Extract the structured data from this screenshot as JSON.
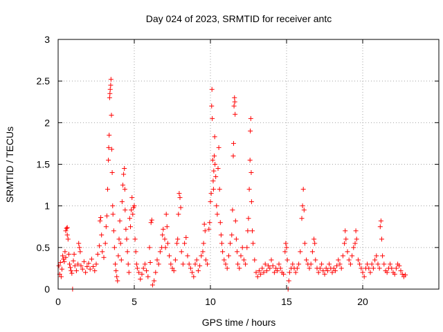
{
  "chart_data": {
    "type": "scatter",
    "title": "Day 024 of 2023, SRMTID for receiver antc",
    "xlabel": "GPS time / hours",
    "ylabel": "SRMTID / TECUs",
    "xlim": [
      0,
      25
    ],
    "ylim": [
      0,
      3
    ],
    "x_ticks": [
      0,
      5,
      10,
      15,
      20
    ],
    "x_tick_labels": [
      "0",
      "5",
      "10",
      "15",
      "20"
    ],
    "y_ticks": [
      0,
      0.5,
      1,
      1.5,
      2,
      2.5,
      3
    ],
    "y_tick_labels": [
      "0",
      "0.5",
      "1",
      "1.5",
      "2",
      "2.5",
      "3"
    ],
    "grid": true,
    "marker": "+",
    "color": "#ff0000",
    "series": [
      {
        "name": "SRMTID",
        "points": [
          [
            0.05,
            0.28
          ],
          [
            0.1,
            0.18
          ],
          [
            0.15,
            0.32
          ],
          [
            0.2,
            0.15
          ],
          [
            0.25,
            0.24
          ],
          [
            0.3,
            0.4
          ],
          [
            0.35,
            0.36
          ],
          [
            0.4,
            0.33
          ],
          [
            0.45,
            0.45
          ],
          [
            0.5,
            0.38
          ],
          [
            0.5,
            0.7
          ],
          [
            0.55,
            0.73
          ],
          [
            0.6,
            0.65
          ],
          [
            0.6,
            0.74
          ],
          [
            0.65,
            0.6
          ],
          [
            0.7,
            0.42
          ],
          [
            0.75,
            0.3
          ],
          [
            0.8,
            0.26
          ],
          [
            0.85,
            0.22
          ],
          [
            0.9,
            0.19
          ],
          [
            0.95,
            0.0
          ],
          [
            1.0,
            0.34
          ],
          [
            1.05,
            0.42
          ],
          [
            1.1,
            0.28
          ],
          [
            1.2,
            0.22
          ],
          [
            1.3,
            0.3
          ],
          [
            1.35,
            0.55
          ],
          [
            1.4,
            0.5
          ],
          [
            1.45,
            0.45
          ],
          [
            1.5,
            0.28
          ],
          [
            1.6,
            0.24
          ],
          [
            1.7,
            0.33
          ],
          [
            1.8,
            0.2
          ],
          [
            1.9,
            0.27
          ],
          [
            2.0,
            0.31
          ],
          [
            2.1,
            0.24
          ],
          [
            2.2,
            0.36
          ],
          [
            2.3,
            0.27
          ],
          [
            2.4,
            0.22
          ],
          [
            2.5,
            0.3
          ],
          [
            2.6,
            0.42
          ],
          [
            2.7,
            0.52
          ],
          [
            2.75,
            0.82
          ],
          [
            2.8,
            0.86
          ],
          [
            2.85,
            0.65
          ],
          [
            2.9,
            0.45
          ],
          [
            3.0,
            0.38
          ],
          [
            3.1,
            0.55
          ],
          [
            3.15,
            0.75
          ],
          [
            3.2,
            0.88
          ],
          [
            3.25,
            1.2
          ],
          [
            3.3,
            1.55
          ],
          [
            3.32,
            1.7
          ],
          [
            3.35,
            1.85
          ],
          [
            3.38,
            2.3
          ],
          [
            3.4,
            2.35
          ],
          [
            3.42,
            2.4
          ],
          [
            3.45,
            2.45
          ],
          [
            3.47,
            2.52
          ],
          [
            3.5,
            2.09
          ],
          [
            3.52,
            1.68
          ],
          [
            3.55,
            1.4
          ],
          [
            3.58,
            1.0
          ],
          [
            3.6,
            0.9
          ],
          [
            3.65,
            0.7
          ],
          [
            3.7,
            0.5
          ],
          [
            3.75,
            0.3
          ],
          [
            3.8,
            0.22
          ],
          [
            3.85,
            0.15
          ],
          [
            3.9,
            0.1
          ],
          [
            3.95,
            0.4
          ],
          [
            4.0,
            0.6
          ],
          [
            4.05,
            0.82
          ],
          [
            4.1,
            0.55
          ],
          [
            4.15,
            0.35
          ],
          [
            4.2,
            1.05
          ],
          [
            4.25,
            1.25
          ],
          [
            4.3,
            1.38
          ],
          [
            4.35,
            1.45
          ],
          [
            4.38,
            1.2
          ],
          [
            4.4,
            0.95
          ],
          [
            4.45,
            0.72
          ],
          [
            4.5,
            0.6
          ],
          [
            4.55,
            0.45
          ],
          [
            4.6,
            0.3
          ],
          [
            4.65,
            0.2
          ],
          [
            4.7,
            0.85
          ],
          [
            4.75,
            0.75
          ],
          [
            4.8,
            0.95
          ],
          [
            4.85,
            1.1
          ],
          [
            4.9,
            0.9
          ],
          [
            4.95,
            0.98
          ],
          [
            5.0,
            1.0
          ],
          [
            5.05,
            0.6
          ],
          [
            5.1,
            0.45
          ],
          [
            5.15,
            0.3
          ],
          [
            5.2,
            0.25
          ],
          [
            5.3,
            0.2
          ],
          [
            5.4,
            0.12
          ],
          [
            5.5,
            0.18
          ],
          [
            5.6,
            0.25
          ],
          [
            5.7,
            0.3
          ],
          [
            5.8,
            0.22
          ],
          [
            5.9,
            0.15
          ],
          [
            6.0,
            0.5
          ],
          [
            6.05,
            0.32
          ],
          [
            6.1,
            0.8
          ],
          [
            6.15,
            0.83
          ],
          [
            6.2,
            0.05
          ],
          [
            6.3,
            0.1
          ],
          [
            6.4,
            0.2
          ],
          [
            6.5,
            0.35
          ],
          [
            6.6,
            0.3
          ],
          [
            6.7,
            0.45
          ],
          [
            6.8,
            0.5
          ],
          [
            6.85,
            0.65
          ],
          [
            6.9,
            0.72
          ],
          [
            7.0,
            0.6
          ],
          [
            7.05,
            0.5
          ],
          [
            7.1,
            0.9
          ],
          [
            7.15,
            0.75
          ],
          [
            7.2,
            0.55
          ],
          [
            7.3,
            0.4
          ],
          [
            7.4,
            0.3
          ],
          [
            7.5,
            0.25
          ],
          [
            7.6,
            0.22
          ],
          [
            7.7,
            0.35
          ],
          [
            7.8,
            0.55
          ],
          [
            7.85,
            0.6
          ],
          [
            7.9,
            0.9
          ],
          [
            7.95,
            1.15
          ],
          [
            8.0,
            1.1
          ],
          [
            8.05,
            0.98
          ],
          [
            8.1,
            0.45
          ],
          [
            8.2,
            0.3
          ],
          [
            8.3,
            0.55
          ],
          [
            8.4,
            0.62
          ],
          [
            8.5,
            0.4
          ],
          [
            8.6,
            0.3
          ],
          [
            8.7,
            0.25
          ],
          [
            8.8,
            0.2
          ],
          [
            8.9,
            0.15
          ],
          [
            9.0,
            0.3
          ],
          [
            9.1,
            0.35
          ],
          [
            9.2,
            0.22
          ],
          [
            9.3,
            0.28
          ],
          [
            9.4,
            0.4
          ],
          [
            9.5,
            0.45
          ],
          [
            9.55,
            0.55
          ],
          [
            9.6,
            0.78
          ],
          [
            9.65,
            0.7
          ],
          [
            9.7,
            0.35
          ],
          [
            9.8,
            0.3
          ],
          [
            9.9,
            0.72
          ],
          [
            9.95,
            0.8
          ],
          [
            10.0,
            1.05
          ],
          [
            10.05,
            1.15
          ],
          [
            10.08,
            2.2
          ],
          [
            10.1,
            2.4
          ],
          [
            10.12,
            2.05
          ],
          [
            10.15,
            1.55
          ],
          [
            10.18,
            1.3
          ],
          [
            10.2,
            1.2
          ],
          [
            10.22,
            1.42
          ],
          [
            10.25,
            1.6
          ],
          [
            10.28,
            1.83
          ],
          [
            10.3,
            1.5
          ],
          [
            10.35,
            1.35
          ],
          [
            10.4,
            1.0
          ],
          [
            10.45,
            0.9
          ],
          [
            10.5,
            1.45
          ],
          [
            10.55,
            1.7
          ],
          [
            10.6,
            1.2
          ],
          [
            10.65,
            0.8
          ],
          [
            10.7,
            0.65
          ],
          [
            10.75,
            0.55
          ],
          [
            10.8,
            0.45
          ],
          [
            10.9,
            0.35
          ],
          [
            11.0,
            0.3
          ],
          [
            11.1,
            0.25
          ],
          [
            11.2,
            0.4
          ],
          [
            11.3,
            0.55
          ],
          [
            11.4,
            0.65
          ],
          [
            11.45,
            0.95
          ],
          [
            11.5,
            1.6
          ],
          [
            11.52,
            1.75
          ],
          [
            11.55,
            2.2
          ],
          [
            11.58,
            2.3
          ],
          [
            11.6,
            2.25
          ],
          [
            11.62,
            2.1
          ],
          [
            11.65,
            0.82
          ],
          [
            11.7,
            0.6
          ],
          [
            11.75,
            0.45
          ],
          [
            11.8,
            0.3
          ],
          [
            11.9,
            0.25
          ],
          [
            12.0,
            0.4
          ],
          [
            12.1,
            0.5
          ],
          [
            12.2,
            0.35
          ],
          [
            12.3,
            0.3
          ],
          [
            12.4,
            0.5
          ],
          [
            12.45,
            0.7
          ],
          [
            12.5,
            0.85
          ],
          [
            12.55,
            1.2
          ],
          [
            12.6,
            1.55
          ],
          [
            12.62,
            1.9
          ],
          [
            12.65,
            2.05
          ],
          [
            12.68,
            1.4
          ],
          [
            12.7,
            1.05
          ],
          [
            12.75,
            0.7
          ],
          [
            12.8,
            0.55
          ],
          [
            12.9,
            0.35
          ],
          [
            13.0,
            0.2
          ],
          [
            13.1,
            0.15
          ],
          [
            13.2,
            0.22
          ],
          [
            13.3,
            0.18
          ],
          [
            13.4,
            0.25
          ],
          [
            13.5,
            0.2
          ],
          [
            13.6,
            0.3
          ],
          [
            13.7,
            0.22
          ],
          [
            13.8,
            0.28
          ],
          [
            13.9,
            0.25
          ],
          [
            14.0,
            0.35
          ],
          [
            14.1,
            0.28
          ],
          [
            14.2,
            0.2
          ],
          [
            14.3,
            0.25
          ],
          [
            14.4,
            0.22
          ],
          [
            14.5,
            0.3
          ],
          [
            14.6,
            0.25
          ],
          [
            14.7,
            0.2
          ],
          [
            14.8,
            0.18
          ],
          [
            14.9,
            0.45
          ],
          [
            14.95,
            0.55
          ],
          [
            15.0,
            0.5
          ],
          [
            15.05,
            0.35
          ],
          [
            15.1,
            0.0
          ],
          [
            15.15,
            0.1
          ],
          [
            15.2,
            0.2
          ],
          [
            15.3,
            0.25
          ],
          [
            15.4,
            0.3
          ],
          [
            15.5,
            0.25
          ],
          [
            15.6,
            0.2
          ],
          [
            15.7,
            0.25
          ],
          [
            15.8,
            0.3
          ],
          [
            15.9,
            0.45
          ],
          [
            16.0,
            0.85
          ],
          [
            16.05,
            1.0
          ],
          [
            16.1,
            1.2
          ],
          [
            16.15,
            0.95
          ],
          [
            16.2,
            0.55
          ],
          [
            16.3,
            0.35
          ],
          [
            16.4,
            0.3
          ],
          [
            16.5,
            0.25
          ],
          [
            16.6,
            0.3
          ],
          [
            16.7,
            0.45
          ],
          [
            16.8,
            0.6
          ],
          [
            16.85,
            0.55
          ],
          [
            16.9,
            0.35
          ],
          [
            17.0,
            0.25
          ],
          [
            17.1,
            0.2
          ],
          [
            17.2,
            0.25
          ],
          [
            17.3,
            0.3
          ],
          [
            17.4,
            0.22
          ],
          [
            17.5,
            0.18
          ],
          [
            17.6,
            0.25
          ],
          [
            17.7,
            0.22
          ],
          [
            17.8,
            0.3
          ],
          [
            17.9,
            0.25
          ],
          [
            18.0,
            0.2
          ],
          [
            18.1,
            0.25
          ],
          [
            18.2,
            0.22
          ],
          [
            18.3,
            0.28
          ],
          [
            18.4,
            0.35
          ],
          [
            18.5,
            0.3
          ],
          [
            18.6,
            0.25
          ],
          [
            18.7,
            0.4
          ],
          [
            18.8,
            0.55
          ],
          [
            18.85,
            0.7
          ],
          [
            18.9,
            0.6
          ],
          [
            19.0,
            0.45
          ],
          [
            19.1,
            0.35
          ],
          [
            19.2,
            0.3
          ],
          [
            19.3,
            0.4
          ],
          [
            19.4,
            0.5
          ],
          [
            19.5,
            0.55
          ],
          [
            19.55,
            0.7
          ],
          [
            19.6,
            0.6
          ],
          [
            19.7,
            0.35
          ],
          [
            19.8,
            0.3
          ],
          [
            19.9,
            0.25
          ],
          [
            20.0,
            0.2
          ],
          [
            20.1,
            0.15
          ],
          [
            20.2,
            0.25
          ],
          [
            20.3,
            0.3
          ],
          [
            20.4,
            0.25
          ],
          [
            20.5,
            0.2
          ],
          [
            20.6,
            0.3
          ],
          [
            20.7,
            0.25
          ],
          [
            20.8,
            0.35
          ],
          [
            20.9,
            0.4
          ],
          [
            21.0,
            0.3
          ],
          [
            21.1,
            0.25
          ],
          [
            21.15,
            0.75
          ],
          [
            21.2,
            0.82
          ],
          [
            21.25,
            0.6
          ],
          [
            21.3,
            0.4
          ],
          [
            21.4,
            0.3
          ],
          [
            21.5,
            0.22
          ],
          [
            21.6,
            0.2
          ],
          [
            21.7,
            0.25
          ],
          [
            21.8,
            0.3
          ],
          [
            21.9,
            0.25
          ],
          [
            22.0,
            0.2
          ],
          [
            22.1,
            0.18
          ],
          [
            22.2,
            0.25
          ],
          [
            22.3,
            0.3
          ],
          [
            22.4,
            0.28
          ],
          [
            22.5,
            0.22
          ],
          [
            22.6,
            0.18
          ],
          [
            22.7,
            0.15
          ],
          [
            22.8,
            0.17
          ]
        ]
      }
    ]
  }
}
